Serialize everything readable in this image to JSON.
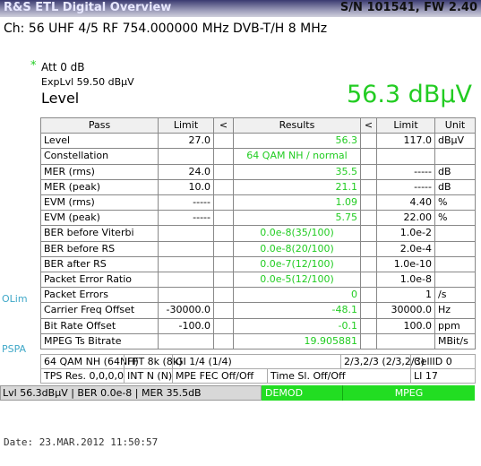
{
  "header": {
    "title": "R&S ETL Digital Overview",
    "serial": "S/N 101541, FW 2.40"
  },
  "channel": "Ch:  56  UHF 4/5  RF 754.000000 MHz  DVB-T/H  8 MHz",
  "att": {
    "star": "*",
    "text": "Att  0 dB"
  },
  "exp_level": "ExpLvl 59.50 dBµV",
  "level": {
    "label": "Level",
    "value": "56.3 dBµV"
  },
  "table": {
    "columns": [
      "Pass",
      "Limit",
      "<",
      "Results",
      "<",
      "Limit",
      "Unit"
    ],
    "rows": [
      {
        "name": "Level",
        "low": "27.0",
        "result": "56.3",
        "high": "117.0",
        "unit": "dBµV"
      },
      {
        "name": "Constellation",
        "low": null,
        "result": "64 QAM NH / normal",
        "high": null,
        "unit": null
      },
      {
        "name": "MER (rms)",
        "low": "24.0",
        "result": "35.5",
        "high": "-----",
        "unit": "dB"
      },
      {
        "name": "MER (peak)",
        "low": "10.0",
        "result": "21.1",
        "high": "-----",
        "unit": "dB"
      },
      {
        "name": "EVM (rms)",
        "low": "-----",
        "result": "1.09",
        "high": "4.40",
        "unit": "%"
      },
      {
        "name": "EVM (peak)",
        "low": "-----",
        "result": "5.75",
        "high": "22.00",
        "unit": "%"
      },
      {
        "name": "BER before Viterbi",
        "low": null,
        "result": "0.0e-8(35/100)",
        "high": "1.0e-2",
        "unit": null
      },
      {
        "name": "BER before RS",
        "low": null,
        "result": "0.0e-8(20/100)",
        "high": "2.0e-4",
        "unit": null
      },
      {
        "name": "BER after RS",
        "low": null,
        "result": "0.0e-7(12/100)",
        "high": "1.0e-10",
        "unit": null
      },
      {
        "name": "Packet Error Ratio",
        "low": null,
        "result": "0.0e-5(12/100)",
        "high": "1.0e-8",
        "unit": null
      },
      {
        "name": "Packet Errors",
        "low": null,
        "result": "0",
        "high": "1",
        "unit": "/s"
      },
      {
        "name": "Carrier Freq Offset",
        "low": "-30000.0",
        "result": "-48.1",
        "high": "30000.0",
        "unit": "Hz"
      },
      {
        "name": "Bit Rate Offset",
        "low": "-100.0",
        "result": "-0.1",
        "high": "100.0",
        "unit": "ppm"
      },
      {
        "name": "MPEG Ts Bitrate",
        "low": null,
        "result": "19.905881",
        "high": null,
        "unit": "MBit/s"
      }
    ]
  },
  "side_labels": {
    "olim": "OLim",
    "pspa": "PSPA"
  },
  "info": [
    [
      "64 QAM NH (64NH)",
      "FFT 8k (8k)",
      "GI 1/4 (1/4)",
      null,
      "2/3,2/3 (2/3,2/3)",
      "CellID 0"
    ],
    [
      "TPS Res. 0,0,0,0",
      "INT N (N)",
      "MPE FEC Off/Off",
      "Time Sl. Off/Off",
      null,
      "LI 17"
    ]
  ],
  "status": {
    "summary": "Lvl 56.3dBµV | BER 0.0e-8 | MER 35.5dB",
    "demod": "DEMOD",
    "mpeg": "MPEG"
  },
  "date": "Date: 23.MAR.2012  11:50:57"
}
